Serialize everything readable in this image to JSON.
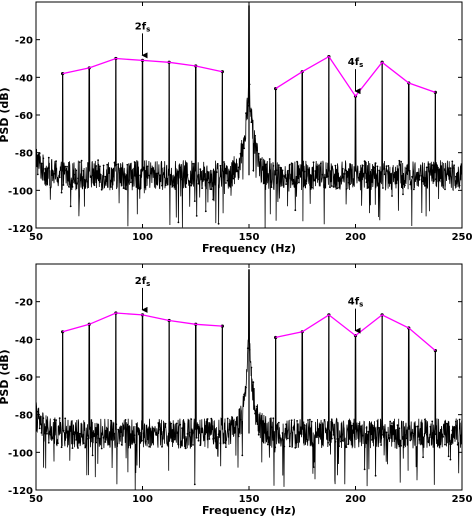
{
  "chart_data": [
    {
      "type": "line",
      "xlabel": "Frequency (Hz)",
      "ylabel": "PSD (dB)",
      "xlim": [
        50,
        250
      ],
      "ylim": [
        -120,
        0
      ],
      "xticks": [
        "50",
        "100",
        "150",
        "200",
        "250"
      ],
      "yticks": [
        "-20",
        "-40",
        "-60",
        "-80",
        "-100",
        "-120"
      ],
      "noise_floor_db": -92,
      "peak_at_150hz_db": -2,
      "harmonics": {
        "x": [
          62.5,
          75,
          87.5,
          100,
          112.5,
          125,
          137.5,
          162.5,
          175,
          187.5,
          200,
          212.5,
          225,
          237.5
        ],
        "y": [
          -38,
          -35,
          -30,
          -31,
          -32,
          -34,
          -37,
          -46,
          -37,
          -29,
          -50,
          -32,
          -43,
          -48
        ]
      },
      "envelope_groups": [
        [
          0,
          6
        ],
        [
          7,
          13
        ]
      ],
      "annotations": [
        {
          "main": "2f",
          "sub": "s",
          "x": 100
        },
        {
          "main": "4f",
          "sub": "s",
          "x": 200
        }
      ],
      "colors": {
        "signal": "#000000",
        "envelope": "#ff00ff"
      }
    },
    {
      "type": "line",
      "xlabel": "Frequency (Hz)",
      "ylabel": "PSD (dB)",
      "xlim": [
        50,
        250
      ],
      "ylim": [
        -120,
        0
      ],
      "xticks": [
        "50",
        "100",
        "150",
        "200",
        "250"
      ],
      "yticks": [
        "-20",
        "-40",
        "-60",
        "-80",
        "-100",
        "-120"
      ],
      "noise_floor_db": -90,
      "peak_at_150hz_db": -3,
      "harmonics": {
        "x": [
          62.5,
          75,
          87.5,
          100,
          112.5,
          125,
          137.5,
          162.5,
          175,
          187.5,
          200,
          212.5,
          225,
          237.5
        ],
        "y": [
          -36,
          -32,
          -26,
          -27,
          -30,
          -32,
          -33,
          -39,
          -36,
          -27,
          -38,
          -27,
          -34,
          -46
        ]
      },
      "envelope_groups": [
        [
          0,
          6
        ],
        [
          7,
          13
        ]
      ],
      "annotations": [
        {
          "main": "2f",
          "sub": "s",
          "x": 100
        },
        {
          "main": "4f",
          "sub": "s",
          "x": 200
        }
      ],
      "colors": {
        "signal": "#000000",
        "envelope": "#ff00ff"
      }
    }
  ]
}
